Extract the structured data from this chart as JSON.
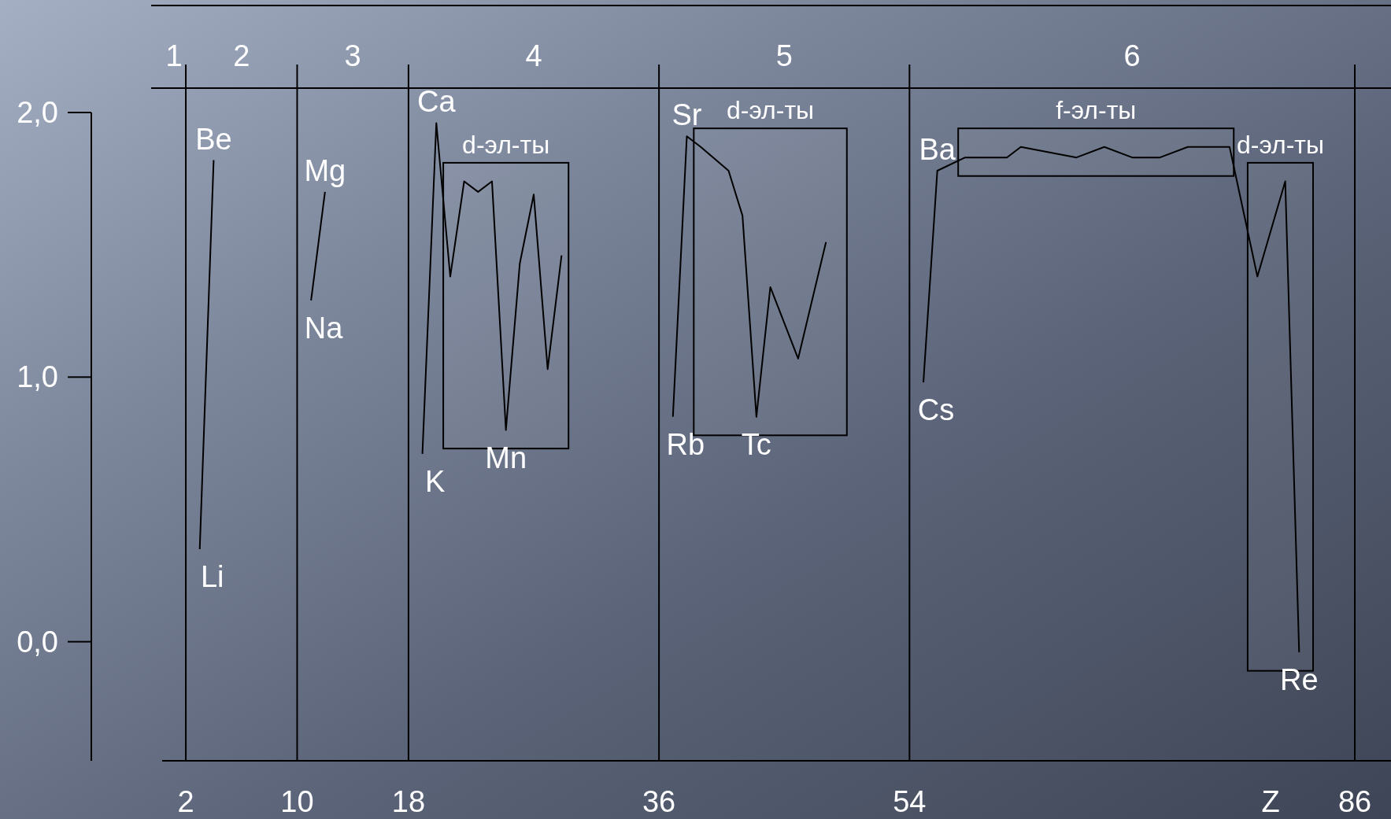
{
  "chart_data": {
    "type": "line",
    "xlim": [
      0.3,
      88.6
    ],
    "xticks": [
      2,
      10,
      18,
      36,
      54,
      86
    ],
    "xlabel": "Z",
    "ylim": [
      -0.45,
      2
    ],
    "yticks": [
      {
        "value": 0,
        "label": "0,0"
      },
      {
        "value": 1,
        "label": "1,0"
      },
      {
        "value": 2,
        "label": "2,0"
      }
    ],
    "grid": "x",
    "marker": "none",
    "series": [
      {
        "color": "#000000",
        "x": [
          3,
          4
        ],
        "values": [
          0.35,
          1.82
        ]
      },
      {
        "color": "#000000",
        "x": [
          11,
          12
        ],
        "values": [
          1.29,
          1.7
        ]
      },
      {
        "color": "#000000",
        "x": [
          19,
          20,
          21,
          22,
          23,
          24,
          25,
          26,
          27,
          28,
          29
        ],
        "values": [
          0.71,
          1.96,
          1.38,
          1.74,
          1.7,
          1.74,
          0.8,
          1.43,
          1.69,
          1.03,
          1.46
        ]
      },
      {
        "color": "#000000",
        "x": [
          37,
          38,
          39,
          41,
          42,
          43,
          44,
          46,
          48
        ],
        "values": [
          0.85,
          1.91,
          1.87,
          1.78,
          1.61,
          0.85,
          1.34,
          1.07,
          1.51
        ]
      },
      {
        "color": "#000000",
        "x": [
          55,
          56,
          58,
          61,
          62,
          66,
          68,
          70,
          72,
          74,
          77,
          79,
          81,
          82
        ],
        "values": [
          0.98,
          1.78,
          1.83,
          1.83,
          1.87,
          1.83,
          1.87,
          1.83,
          1.83,
          1.87,
          1.87,
          1.38,
          1.74,
          -0.04
        ]
      }
    ],
    "bands": [
      {
        "axis": "x",
        "from": 20.5,
        "to": 29.5,
        "label": "d-эл-ты"
      },
      {
        "axis": "x",
        "from": 38.5,
        "to": 49.5,
        "label": "d-эл-ты"
      },
      {
        "axis": "x",
        "from": 57.5,
        "to": 77.3,
        "label": "f-эл-ты"
      },
      {
        "axis": "x",
        "from": 78.3,
        "to": 83,
        "label": "d-эл-ты"
      }
    ],
    "annotations": [
      "1",
      "2",
      "3",
      "4",
      "5",
      "6",
      {
        "text": "Li",
        "x": 3,
        "y": 0.35
      },
      {
        "text": "Be",
        "x": 4,
        "y": 1.82
      },
      {
        "text": "Na",
        "x": 11,
        "y": 1.29
      },
      {
        "text": "Mg",
        "x": 12,
        "y": 1.7
      },
      {
        "text": "K",
        "x": 19,
        "y": 0.71
      },
      {
        "text": "Ca",
        "x": 20,
        "y": 1.96
      },
      {
        "text": "Mn",
        "x": 25,
        "y": 0.8
      },
      {
        "text": "Rb",
        "x": 37,
        "y": 0.85
      },
      {
        "text": "Sr",
        "x": 38,
        "y": 1.91
      },
      {
        "text": "Tc",
        "x": 43,
        "y": 0.85
      },
      {
        "text": "Cs",
        "x": 55,
        "y": 0.98
      },
      {
        "text": "Ba",
        "x": 56,
        "y": 1.78
      },
      {
        "text": "Re",
        "x": 82,
        "y": -0.04
      }
    ]
  }
}
